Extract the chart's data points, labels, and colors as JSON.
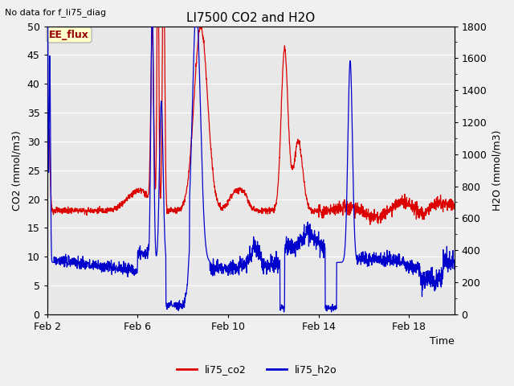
{
  "title": "LI7500 CO2 and H2O",
  "subtitle": "No data for f_li75_diag",
  "xlabel": "Time",
  "ylabel_left": "CO2 (mmol/m3)",
  "ylabel_right": "H2O (mmol/m3)",
  "ylim_left": [
    0,
    50
  ],
  "ylim_right": [
    0,
    1800
  ],
  "legend_labels": [
    "li75_co2",
    "li75_h2o"
  ],
  "co2_color": "#dd0000",
  "h2o_color": "#0000cc",
  "fig_bg_color": "#f0f0f0",
  "plot_bg_color": "#e8e8e8",
  "grid_color": "#ffffff",
  "EE_flux_label": "EE_flux",
  "EE_flux_bg": "#ffffcc",
  "EE_flux_border": "#aaaaaa",
  "EE_flux_text_color": "#990000",
  "xtick_positions": [
    0,
    4,
    8,
    12,
    16
  ],
  "xtick_labels": [
    "Feb 2",
    "Feb 6",
    "Feb 10",
    "Feb 14",
    "Feb 18"
  ],
  "yticks_left": [
    0,
    5,
    10,
    15,
    20,
    25,
    30,
    35,
    40,
    45,
    50
  ],
  "yticks_right": [
    0,
    200,
    400,
    600,
    800,
    1000,
    1200,
    1400,
    1600,
    1800
  ],
  "xlim": [
    0,
    18
  ],
  "n_points": 2000,
  "x_end": 18
}
